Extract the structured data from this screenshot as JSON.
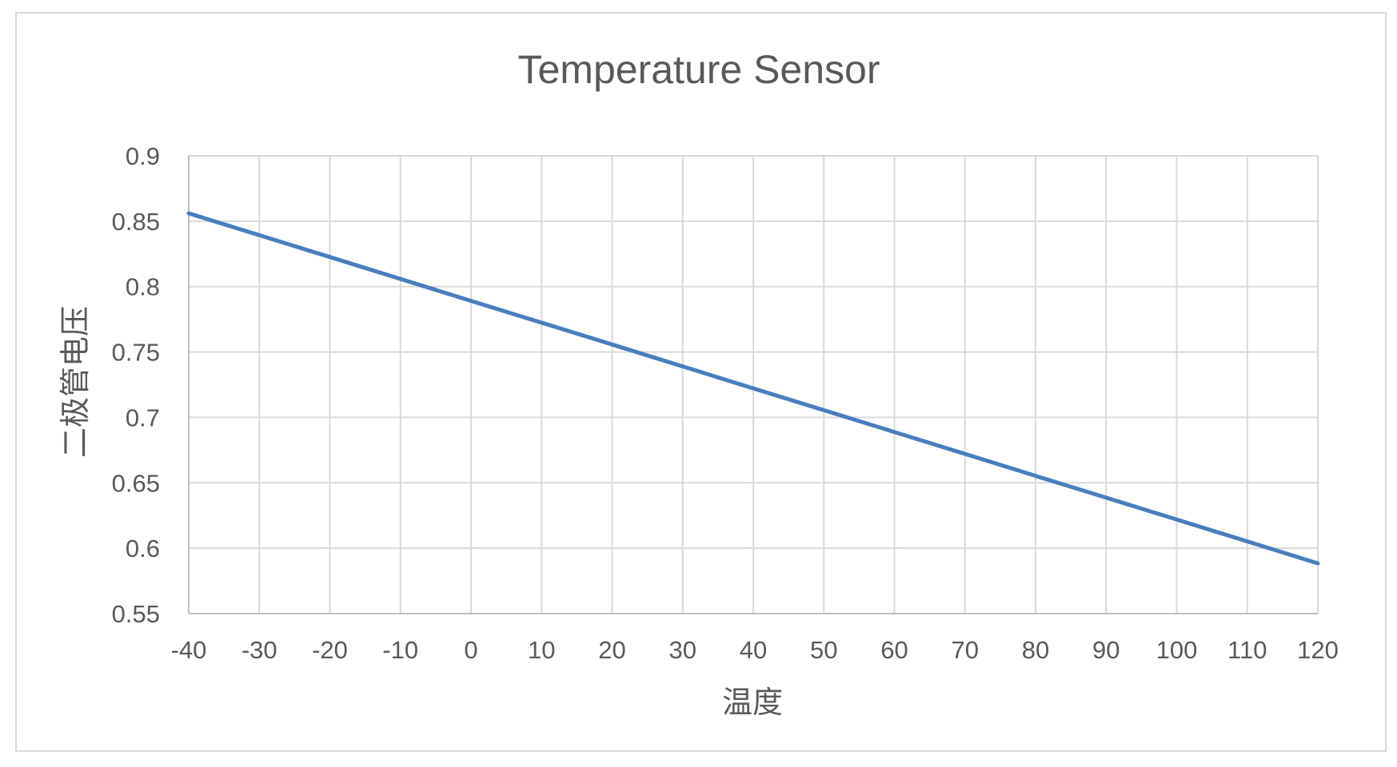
{
  "chart_data": {
    "type": "line",
    "title": "Temperature Sensor",
    "xlabel": "温度",
    "ylabel": "二极管电压",
    "x": [
      -40,
      -30,
      -20,
      -10,
      0,
      10,
      20,
      30,
      40,
      50,
      60,
      70,
      80,
      90,
      100,
      110,
      120
    ],
    "series": [
      {
        "values": [
          0.856,
          0.8393,
          0.8226,
          0.8059,
          0.7891,
          0.7724,
          0.7557,
          0.739,
          0.7222,
          0.7055,
          0.6888,
          0.6721,
          0.6553,
          0.6386,
          0.6219,
          0.6052,
          0.5884
        ],
        "color": "#4a7dbf"
      }
    ],
    "xlim": [
      -40,
      120
    ],
    "ylim": [
      0.55,
      0.9
    ],
    "xticks": [
      "-40",
      "-30",
      "-20",
      "-10",
      "0",
      "10",
      "20",
      "30",
      "40",
      "50",
      "60",
      "70",
      "80",
      "90",
      "100",
      "110",
      "120"
    ],
    "yticks": [
      "0.55",
      "0.6",
      "0.65",
      "0.7",
      "0.75",
      "0.8",
      "0.85",
      "0.9"
    ],
    "grid": true,
    "legend": "none"
  }
}
